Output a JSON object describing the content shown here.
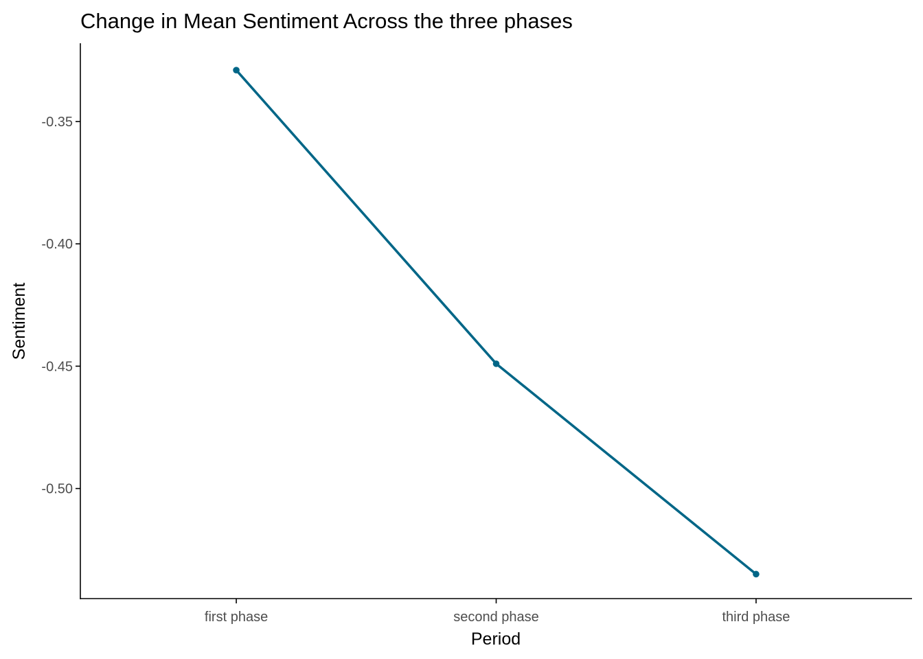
{
  "chart_data": {
    "type": "line",
    "title": "Change in Mean Sentiment Across the three phases",
    "xlabel": "Period",
    "ylabel": "Sentiment",
    "categories": [
      "first phase",
      "second phase",
      "third phase"
    ],
    "series": [
      {
        "values": [
          -0.329,
          -0.449,
          -0.535
        ],
        "color": "#006687"
      }
    ],
    "ylim": [
      -0.545,
      -0.318
    ],
    "yticks": [
      -0.35,
      -0.4,
      -0.45,
      -0.5
    ],
    "ytick_labels": [
      "-0.35",
      "-0.40",
      "-0.45",
      "-0.50"
    ],
    "grid": false,
    "legend": "none",
    "theme": "classic"
  }
}
